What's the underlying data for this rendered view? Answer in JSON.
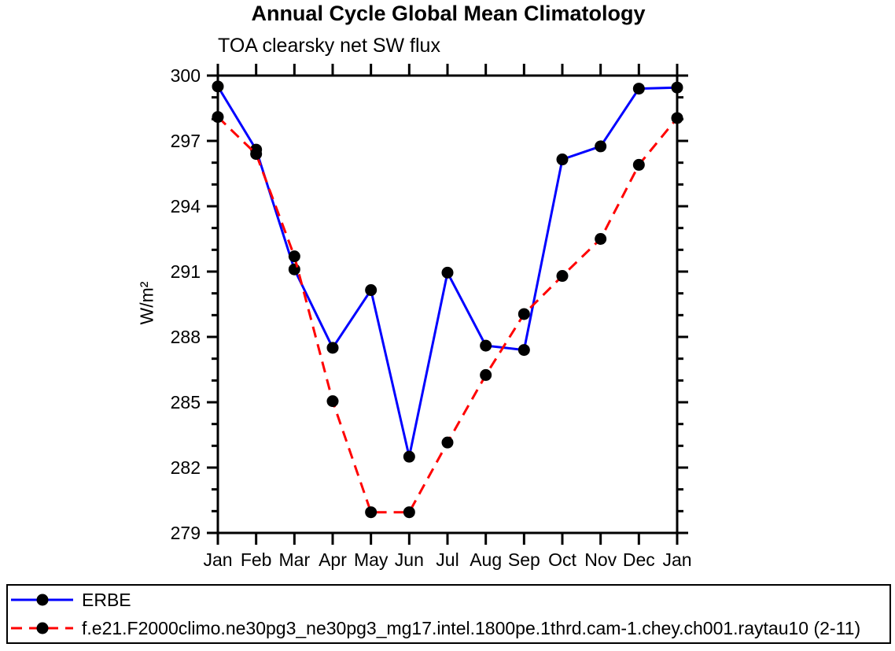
{
  "chart_data": {
    "type": "line",
    "title": "Annual Cycle Global Mean Climatology",
    "subtitle": "TOA clearsky net SW flux",
    "ylabel": "W/m²",
    "xlabel": "",
    "categories": [
      "Jan",
      "Feb",
      "Mar",
      "Apr",
      "May",
      "Jun",
      "Jul",
      "Aug",
      "Sep",
      "Oct",
      "Nov",
      "Dec",
      "Jan"
    ],
    "ylim": [
      279,
      300
    ],
    "yticks": {
      "major_step": 3,
      "minor_step": 1,
      "major_labels": [
        "279",
        "282",
        "285",
        "288",
        "291",
        "294",
        "297",
        "300"
      ]
    },
    "grid": false,
    "frame": "box-with-outward-ticks",
    "legend_position": "bottom-box",
    "marker": "filled-circle",
    "marker_color": "#000000",
    "series": [
      {
        "name": "ERBE",
        "color": "#0000ff",
        "line_style": "solid",
        "values": [
          299.5,
          296.6,
          291.1,
          287.5,
          290.15,
          282.5,
          290.95,
          287.6,
          287.4,
          296.15,
          296.75,
          299.4,
          299.45
        ]
      },
      {
        "name": "f.e21.F2000climo.ne30pg3_ne30pg3_mg17.intel.1800pe.1thrd.cam-1.chey.ch001.raytau10 (2-11)",
        "color": "#ff0000",
        "line_style": "dashed",
        "values": [
          298.1,
          296.4,
          291.7,
          285.05,
          279.95,
          279.95,
          283.15,
          286.25,
          289.05,
          290.8,
          292.5,
          295.9,
          298.05
        ]
      }
    ]
  }
}
